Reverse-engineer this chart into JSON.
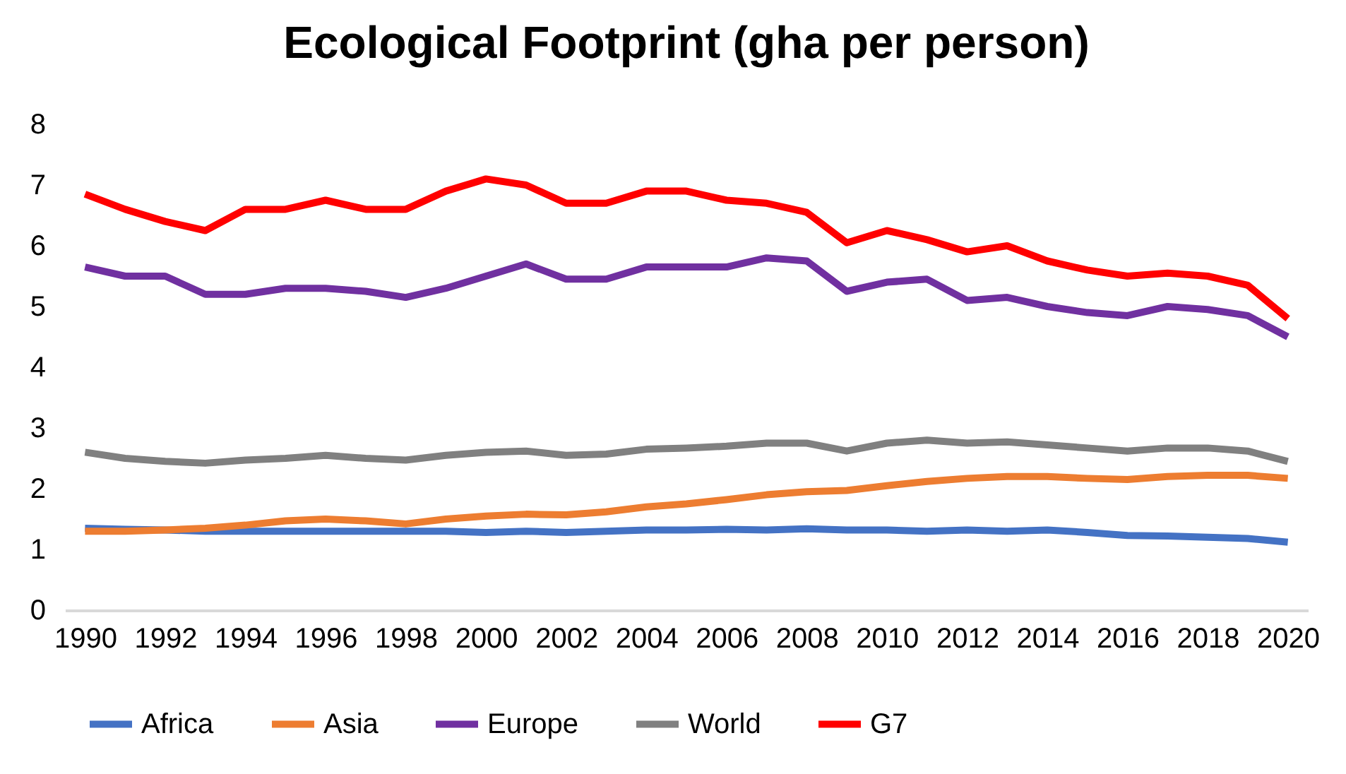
{
  "chart_data": {
    "type": "line",
    "title": "Ecological Footprint (gha per person)",
    "x": [
      1990,
      1991,
      1992,
      1993,
      1994,
      1995,
      1996,
      1997,
      1998,
      1999,
      2000,
      2001,
      2002,
      2003,
      2004,
      2005,
      2006,
      2007,
      2008,
      2009,
      2010,
      2011,
      2012,
      2013,
      2014,
      2015,
      2016,
      2017,
      2018,
      2019,
      2020
    ],
    "series": [
      {
        "name": "Africa",
        "color": "#4472c4",
        "values": [
          1.35,
          1.33,
          1.32,
          1.3,
          1.3,
          1.3,
          1.3,
          1.3,
          1.3,
          1.3,
          1.28,
          1.3,
          1.28,
          1.3,
          1.32,
          1.32,
          1.33,
          1.32,
          1.34,
          1.32,
          1.32,
          1.3,
          1.32,
          1.3,
          1.32,
          1.28,
          1.23,
          1.22,
          1.2,
          1.18,
          1.12
        ]
      },
      {
        "name": "Asia",
        "color": "#ed7d31",
        "values": [
          1.3,
          1.3,
          1.32,
          1.35,
          1.4,
          1.47,
          1.5,
          1.47,
          1.42,
          1.5,
          1.55,
          1.58,
          1.57,
          1.62,
          1.7,
          1.75,
          1.82,
          1.9,
          1.95,
          1.97,
          2.05,
          2.12,
          2.17,
          2.2,
          2.2,
          2.17,
          2.15,
          2.2,
          2.22,
          2.22,
          2.17
        ]
      },
      {
        "name": "Europe",
        "color": "#7030a0",
        "values": [
          5.65,
          5.5,
          5.5,
          5.2,
          5.2,
          5.3,
          5.3,
          5.25,
          5.15,
          5.3,
          5.5,
          5.7,
          5.45,
          5.45,
          5.65,
          5.65,
          5.65,
          5.8,
          5.75,
          5.25,
          5.4,
          5.45,
          5.1,
          5.15,
          5.0,
          4.9,
          4.85,
          5.0,
          4.95,
          4.85,
          4.5
        ]
      },
      {
        "name": "World",
        "color": "#808080",
        "values": [
          2.6,
          2.5,
          2.45,
          2.42,
          2.47,
          2.5,
          2.55,
          2.5,
          2.47,
          2.55,
          2.6,
          2.62,
          2.55,
          2.57,
          2.65,
          2.67,
          2.7,
          2.75,
          2.75,
          2.62,
          2.75,
          2.8,
          2.75,
          2.77,
          2.72,
          2.67,
          2.62,
          2.67,
          2.67,
          2.62,
          2.45
        ]
      },
      {
        "name": "G7",
        "color": "#ff0000",
        "values": [
          6.85,
          6.6,
          6.4,
          6.25,
          6.6,
          6.6,
          6.75,
          6.6,
          6.6,
          6.9,
          7.1,
          7.0,
          6.7,
          6.7,
          6.9,
          6.9,
          6.75,
          6.7,
          6.55,
          6.05,
          6.25,
          6.1,
          5.9,
          6.0,
          5.75,
          5.6,
          5.5,
          5.55,
          5.5,
          5.35,
          4.8
        ]
      }
    ],
    "xlim": [
      1989.5,
      2020.5
    ],
    "xticks": [
      1990,
      1992,
      1994,
      1996,
      1998,
      2000,
      2002,
      2004,
      2006,
      2008,
      2010,
      2012,
      2014,
      2016,
      2018,
      2020
    ],
    "ylim": [
      0,
      8
    ],
    "yticks": [
      0,
      1,
      2,
      3,
      4,
      5,
      6,
      7,
      8
    ],
    "grid": false,
    "legend": "bottom",
    "marker": "none",
    "line_style": "solid"
  }
}
